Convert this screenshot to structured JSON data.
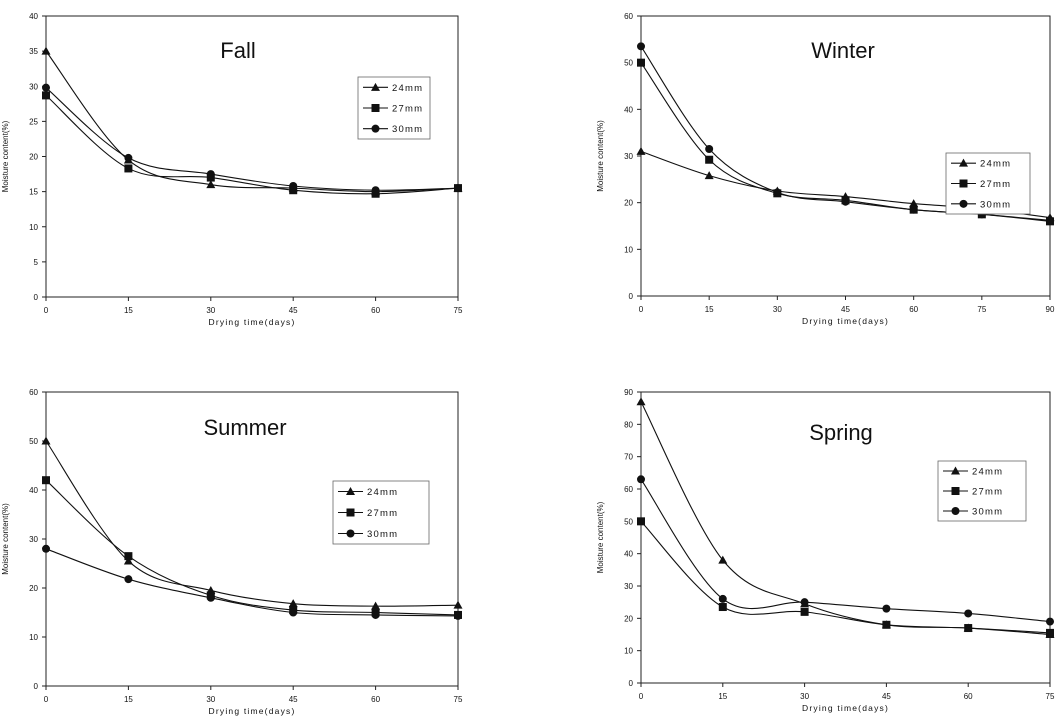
{
  "chart_data": [
    {
      "type": "line",
      "title": "Fall",
      "xlabel": "Drying time(days)",
      "ylabel": "Moisture content(%)",
      "xlim": [
        0,
        75
      ],
      "ylim": [
        0,
        40
      ],
      "xticks": [
        0,
        15,
        30,
        45,
        60,
        75
      ],
      "yticks": [
        0,
        5,
        10,
        15,
        20,
        25,
        30,
        35,
        40
      ],
      "grid": false,
      "legend_position": "top-right",
      "series": [
        {
          "name": "24mm",
          "marker": "triangle",
          "x": [
            0,
            15,
            30,
            45,
            60,
            75
          ],
          "y": [
            35,
            19.5,
            16,
            15.5,
            15,
            15.5
          ]
        },
        {
          "name": "27mm",
          "marker": "square",
          "x": [
            0,
            15,
            30,
            45,
            60,
            75
          ],
          "y": [
            28.7,
            18.3,
            17,
            15.2,
            14.7,
            15.5
          ]
        },
        {
          "name": "30mm",
          "marker": "circle",
          "x": [
            0,
            15,
            30,
            45,
            60,
            75
          ],
          "y": [
            29.8,
            19.8,
            17.5,
            15.8,
            15.2,
            15.5
          ]
        }
      ]
    },
    {
      "type": "line",
      "title": "Winter",
      "xlabel": "Drying time(days)",
      "ylabel": "Moisture content(%)",
      "xlim": [
        0,
        90
      ],
      "ylim": [
        0,
        60
      ],
      "xticks": [
        0,
        15,
        30,
        45,
        60,
        75,
        90
      ],
      "yticks": [
        0,
        10,
        20,
        30,
        40,
        50,
        60
      ],
      "grid": false,
      "legend_position": "right",
      "series": [
        {
          "name": "24mm",
          "marker": "triangle",
          "x": [
            0,
            15,
            30,
            45,
            60,
            75,
            90
          ],
          "y": [
            31,
            25.8,
            22.5,
            21.3,
            19.8,
            18.7,
            16.8
          ]
        },
        {
          "name": "27mm",
          "marker": "square",
          "x": [
            0,
            15,
            30,
            45,
            60,
            75,
            90
          ],
          "y": [
            50,
            29.2,
            22,
            20.5,
            18.5,
            17.5,
            16
          ]
        },
        {
          "name": "30mm",
          "marker": "circle",
          "x": [
            0,
            15,
            30,
            45,
            60,
            75,
            90
          ],
          "y": [
            53.5,
            31.5,
            22.2,
            20.2,
            18.5,
            17.5,
            16.2
          ]
        }
      ]
    },
    {
      "type": "line",
      "title": "Summer",
      "xlabel": "Drying time(days)",
      "ylabel": "Moisture content(%)",
      "xlim": [
        0,
        75
      ],
      "ylim": [
        0,
        60
      ],
      "xticks": [
        0,
        15,
        30,
        45,
        60,
        75
      ],
      "yticks": [
        0,
        10,
        20,
        30,
        40,
        50,
        60
      ],
      "grid": false,
      "legend_position": "right",
      "series": [
        {
          "name": "24mm",
          "marker": "triangle",
          "x": [
            0,
            15,
            30,
            45,
            60,
            75
          ],
          "y": [
            50,
            25.5,
            19.5,
            16.8,
            16.3,
            16.5
          ]
        },
        {
          "name": "27mm",
          "marker": "square",
          "x": [
            0,
            15,
            30,
            45,
            60,
            75
          ],
          "y": [
            42,
            26.5,
            18.5,
            15.5,
            15,
            14.5
          ]
        },
        {
          "name": "30mm",
          "marker": "circle",
          "x": [
            0,
            15,
            30,
            45,
            60,
            75
          ],
          "y": [
            28,
            21.8,
            18,
            15,
            14.5,
            14.3
          ]
        }
      ]
    },
    {
      "type": "line",
      "title": "Spring",
      "xlabel": "Drying time(days)",
      "ylabel": "Moisture content(%)",
      "xlim": [
        0,
        75
      ],
      "ylim": [
        0,
        90
      ],
      "xticks": [
        0,
        15,
        30,
        45,
        60,
        75
      ],
      "yticks": [
        0,
        10,
        20,
        30,
        40,
        50,
        60,
        70,
        80,
        90
      ],
      "grid": false,
      "legend_position": "right",
      "series": [
        {
          "name": "24mm",
          "marker": "triangle",
          "x": [
            0,
            15,
            30,
            45,
            60,
            75
          ],
          "y": [
            87,
            38,
            24.5,
            18,
            17,
            15
          ]
        },
        {
          "name": "27mm",
          "marker": "square",
          "x": [
            0,
            15,
            30,
            45,
            60,
            75
          ],
          "y": [
            50,
            23.5,
            22,
            18,
            17,
            15.5
          ]
        },
        {
          "name": "30mm",
          "marker": "circle",
          "x": [
            0,
            15,
            30,
            45,
            60,
            75
          ],
          "y": [
            63,
            26,
            25,
            23,
            21.5,
            19
          ]
        }
      ]
    }
  ]
}
